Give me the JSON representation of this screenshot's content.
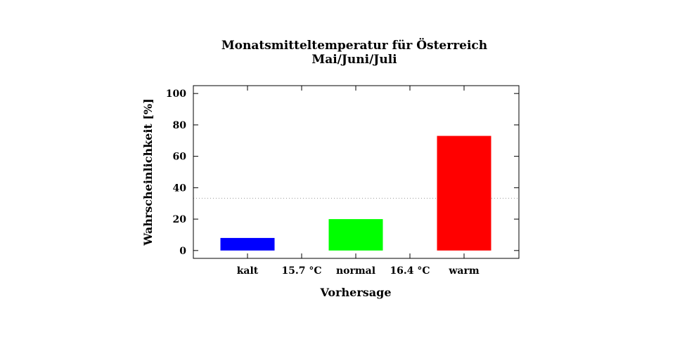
{
  "chart_data": {
    "type": "bar",
    "title": "Monatsmitteltemperatur für Österreich",
    "subtitle": "Mai/Juni/Juli",
    "xlabel": "Vorhersage",
    "ylabel": "Wahrscheinlichkeit [%]",
    "ylim": [
      -5,
      105
    ],
    "yticks": [
      "0",
      "20",
      "40",
      "60",
      "80",
      "100"
    ],
    "categories": [
      "kalt",
      "normal",
      "warm"
    ],
    "values": [
      8,
      20,
      73
    ],
    "colors": [
      "#0000ff",
      "#00ff00",
      "#ff0000"
    ],
    "separators": [
      "15.7 °C",
      "16.4 °C"
    ],
    "reference_line": 33.3,
    "grid": false
  }
}
